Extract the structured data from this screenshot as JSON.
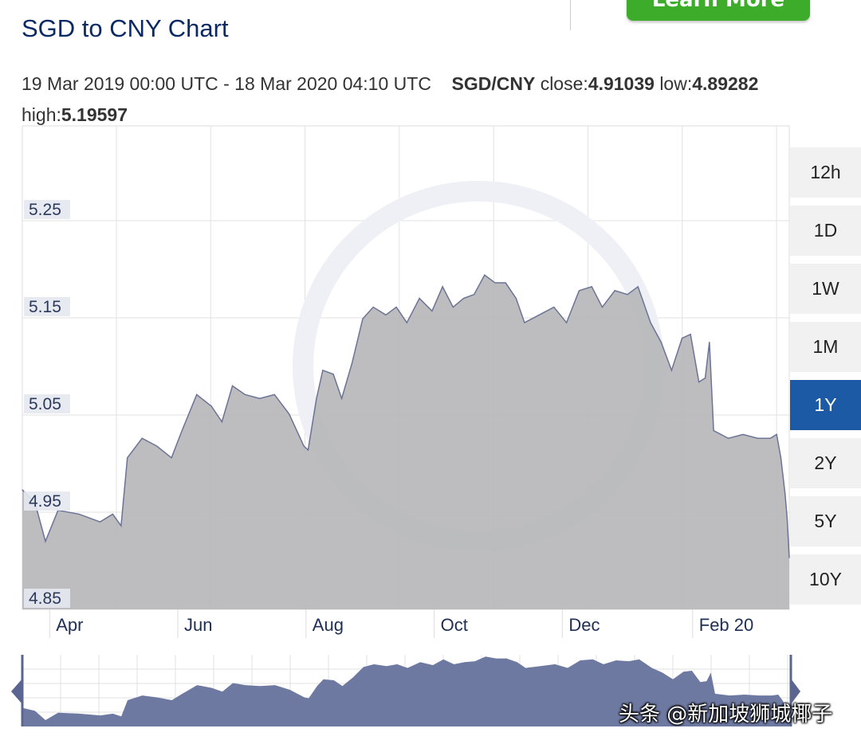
{
  "header": {
    "title": "SGD to CNY Chart",
    "learn_more": "Learn More"
  },
  "info": {
    "range": "19 Mar 2019 00:00 UTC - 18 Mar 2020 04:10 UTC",
    "pair": "SGD/CNY",
    "close_label": "close:",
    "close": "4.91039",
    "low_label": "low:",
    "low": "4.89282",
    "high_label": "high:",
    "high": "5.19597"
  },
  "ranges": [
    {
      "label": "12h"
    },
    {
      "label": "1D"
    },
    {
      "label": "1W"
    },
    {
      "label": "1M"
    },
    {
      "label": "1Y",
      "active": true
    },
    {
      "label": "2Y"
    },
    {
      "label": "5Y"
    },
    {
      "label": "10Y"
    }
  ],
  "watermark": "头条 @新加坡狮城椰子",
  "colors": {
    "area": "#b4b4b6",
    "line": "#6b7396",
    "navigator": "#6e79a1",
    "active_range": "#1d5aa6",
    "learn_more": "#3cac2a"
  },
  "chart_data": {
    "type": "area",
    "ylim": [
      4.85,
      5.3475
    ],
    "yticks": [
      "5.25",
      "5.15",
      "5.05",
      "4.95",
      "4.85"
    ],
    "xticks": [
      {
        "label": "Apr",
        "date": "2019-04-01"
      },
      {
        "label": "Jun",
        "date": "2019-06-01"
      },
      {
        "label": "Aug",
        "date": "2019-08-01"
      },
      {
        "label": "Oct",
        "date": "2019-10-01"
      },
      {
        "label": "Dec",
        "date": "2019-12-01"
      },
      {
        "label": "Feb 20",
        "date": "2020-02-01"
      }
    ],
    "xlim": [
      "2019-03-19",
      "2020-03-18"
    ],
    "grid": true,
    "series": [
      {
        "points": [
          [
            "2019-03-19",
            4.973
          ],
          [
            "2019-03-25",
            4.96
          ],
          [
            "2019-03-30",
            4.92
          ],
          [
            "2019-04-05",
            4.952
          ],
          [
            "2019-04-15",
            4.948
          ],
          [
            "2019-04-25",
            4.94
          ],
          [
            "2019-05-01",
            4.948
          ],
          [
            "2019-05-05",
            4.936
          ],
          [
            "2019-05-08",
            5.006
          ],
          [
            "2019-05-15",
            5.026
          ],
          [
            "2019-05-22",
            5.018
          ],
          [
            "2019-05-29",
            5.006
          ],
          [
            "2019-06-03",
            5.034
          ],
          [
            "2019-06-10",
            5.071
          ],
          [
            "2019-06-17",
            5.059
          ],
          [
            "2019-06-22",
            5.043
          ],
          [
            "2019-06-27",
            5.08
          ],
          [
            "2019-07-03",
            5.071
          ],
          [
            "2019-07-10",
            5.067
          ],
          [
            "2019-07-17",
            5.071
          ],
          [
            "2019-07-24",
            5.051
          ],
          [
            "2019-07-31",
            5.018
          ],
          [
            "2019-08-02",
            5.014
          ],
          [
            "2019-08-06",
            5.067
          ],
          [
            "2019-08-09",
            5.096
          ],
          [
            "2019-08-14",
            5.092
          ],
          [
            "2019-08-18",
            5.067
          ],
          [
            "2019-08-23",
            5.104
          ],
          [
            "2019-08-28",
            5.149
          ],
          [
            "2019-09-02",
            5.161
          ],
          [
            "2019-09-08",
            5.153
          ],
          [
            "2019-09-13",
            5.161
          ],
          [
            "2019-09-18",
            5.145
          ],
          [
            "2019-09-24",
            5.17
          ],
          [
            "2019-09-30",
            5.157
          ],
          [
            "2019-10-05",
            5.182
          ],
          [
            "2019-10-10",
            5.161
          ],
          [
            "2019-10-15",
            5.17
          ],
          [
            "2019-10-20",
            5.174
          ],
          [
            "2019-10-25",
            5.194
          ],
          [
            "2019-10-30",
            5.186
          ],
          [
            "2019-11-04",
            5.186
          ],
          [
            "2019-11-09",
            5.17
          ],
          [
            "2019-11-13",
            5.145
          ],
          [
            "2019-11-20",
            5.153
          ],
          [
            "2019-11-27",
            5.161
          ],
          [
            "2019-12-03",
            5.145
          ],
          [
            "2019-12-09",
            5.178
          ],
          [
            "2019-12-15",
            5.182
          ],
          [
            "2019-12-20",
            5.161
          ],
          [
            "2019-12-26",
            5.178
          ],
          [
            "2020-01-01",
            5.174
          ],
          [
            "2020-01-06",
            5.182
          ],
          [
            "2020-01-12",
            5.145
          ],
          [
            "2020-01-17",
            5.125
          ],
          [
            "2020-01-22",
            5.096
          ],
          [
            "2020-01-27",
            5.129
          ],
          [
            "2020-01-31",
            5.133
          ],
          [
            "2020-02-04",
            5.084
          ],
          [
            "2020-02-07",
            5.088
          ],
          [
            "2020-02-09",
            5.125
          ],
          [
            "2020-02-11",
            5.034
          ],
          [
            "2020-02-18",
            5.026
          ],
          [
            "2020-02-25",
            5.03
          ],
          [
            "2020-03-03",
            5.026
          ],
          [
            "2020-03-09",
            5.026
          ],
          [
            "2020-03-12",
            5.03
          ],
          [
            "2020-03-14",
            5.006
          ],
          [
            "2020-03-16",
            4.969
          ],
          [
            "2020-03-17",
            4.944
          ],
          [
            "2020-03-18",
            4.903
          ]
        ]
      }
    ]
  }
}
